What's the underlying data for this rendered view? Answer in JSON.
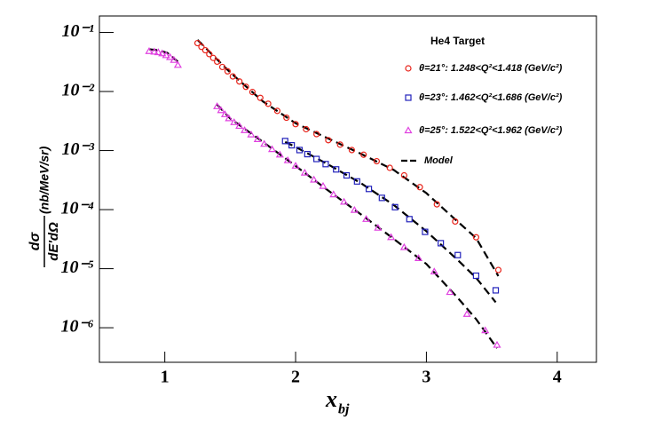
{
  "chart_data": {
    "type": "scatter",
    "legend_title": "He4 Target",
    "xlabel": "x",
    "xlabel_sub": "bj",
    "ylabel_num": "dσ",
    "ylabel_den": "dE'dΩ",
    "ylabel_unit": "(nb/MeV/sr)",
    "xlim": [
      0.5,
      4.3
    ],
    "ylim": [
      2.6e-07,
      0.19
    ],
    "ylog": true,
    "xticks": [
      1,
      2,
      3,
      4
    ],
    "yticks": [
      {
        "value": 1e-06,
        "label": "10⁻⁶"
      },
      {
        "value": 1e-05,
        "label": "10⁻⁵"
      },
      {
        "value": 0.0001,
        "label": "10⁻⁴"
      },
      {
        "value": 0.001,
        "label": "10⁻³"
      },
      {
        "value": 0.01,
        "label": "10⁻²"
      },
      {
        "value": 0.1,
        "label": "10⁻¹"
      }
    ],
    "series": [
      {
        "name": "θ=21°: 1.248<Q²<1.418 (GeV/c²)",
        "color": "#e8231a",
        "marker": "circle",
        "x": [
          1.25,
          1.28,
          1.31,
          1.34,
          1.37,
          1.4,
          1.44,
          1.48,
          1.52,
          1.57,
          1.62,
          1.67,
          1.73,
          1.79,
          1.86,
          1.93,
          2.0,
          2.08,
          2.16,
          2.25,
          2.34,
          2.43,
          2.52,
          2.62,
          2.72,
          2.83,
          2.95,
          3.08,
          3.22,
          3.38,
          3.55
        ],
        "values": [
          0.066,
          0.057,
          0.05,
          0.043,
          0.037,
          0.032,
          0.026,
          0.022,
          0.018,
          0.0148,
          0.012,
          0.0098,
          0.0078,
          0.0062,
          0.0047,
          0.0036,
          0.0028,
          0.0023,
          0.0019,
          0.0015,
          0.00126,
          0.00102,
          0.00085,
          0.00066,
          0.00051,
          0.00038,
          0.00024,
          0.000123,
          6.3e-05,
          3.4e-05,
          9.5e-06
        ]
      },
      {
        "name": "θ=23°: 1.462<Q²<1.686 (GeV/c²)",
        "color": "#2222bb",
        "marker": "square",
        "x": [
          1.92,
          1.97,
          2.03,
          2.09,
          2.16,
          2.23,
          2.31,
          2.39,
          2.47,
          2.56,
          2.66,
          2.76,
          2.87,
          2.99,
          3.11,
          3.24,
          3.38,
          3.53
        ],
        "values": [
          0.00145,
          0.00123,
          0.00102,
          0.00087,
          0.00072,
          0.00059,
          0.00048,
          0.00038,
          0.0003,
          0.000224,
          0.000158,
          0.00011,
          6.9e-05,
          4.2e-05,
          2.7e-05,
          1.7e-05,
          7.6e-06,
          4.3e-06
        ]
      },
      {
        "name": "θ=25°: 1.522<Q²<1.962 (GeV/c²)",
        "color": "#e040e0",
        "marker": "triangle",
        "x": [
          0.88,
          0.92,
          0.95,
          0.98,
          1.01,
          1.04,
          1.07,
          1.1,
          1.4,
          1.43,
          1.46,
          1.49,
          1.53,
          1.57,
          1.61,
          1.66,
          1.71,
          1.76,
          1.82,
          1.88,
          1.94,
          2.0,
          2.07,
          2.14,
          2.21,
          2.29,
          2.37,
          2.45,
          2.54,
          2.63,
          2.73,
          2.83,
          2.94,
          3.06,
          3.18,
          3.31,
          3.45,
          3.54
        ],
        "values": [
          0.048,
          0.047,
          0.046,
          0.044,
          0.041,
          0.038,
          0.034,
          0.028,
          0.0056,
          0.0048,
          0.0041,
          0.0035,
          0.003,
          0.0026,
          0.0022,
          0.00186,
          0.00155,
          0.00129,
          0.00105,
          0.00085,
          0.00068,
          0.00055,
          0.00042,
          0.00032,
          0.00025,
          0.00018,
          0.000135,
          9.8e-05,
          6.9e-05,
          4.9e-05,
          3.4e-05,
          2.3e-05,
          1.5e-05,
          8.9e-06,
          4e-06,
          1.7e-06,
          9e-07,
          5.1e-07
        ]
      }
    ],
    "model": {
      "name": "Model",
      "color": "#000000",
      "curves": [
        {
          "x": [
            0.88,
            0.95,
            1.02,
            1.1
          ],
          "values": [
            0.052,
            0.05,
            0.045,
            0.032
          ]
        },
        {
          "x": [
            1.25,
            1.5,
            1.75,
            2.0,
            2.25,
            2.5,
            2.75,
            3.0,
            3.2,
            3.38,
            3.55
          ],
          "values": [
            0.075,
            0.021,
            0.0068,
            0.0029,
            0.0016,
            0.00088,
            0.00047,
            0.00019,
            7.5e-05,
            3.3e-05,
            7.5e-06
          ]
        },
        {
          "x": [
            1.92,
            2.0,
            2.25,
            2.5,
            2.75,
            3.0,
            3.24,
            3.38,
            3.53
          ],
          "values": [
            0.0014,
            0.00115,
            0.00058,
            0.00028,
            0.00012,
            4.3e-05,
            1.4e-05,
            7e-06,
            2.7e-06
          ]
        },
        {
          "x": [
            1.4,
            1.5,
            1.75,
            2.0,
            2.25,
            2.5,
            2.75,
            3.0,
            3.24,
            3.38,
            3.54
          ],
          "values": [
            0.006,
            0.0035,
            0.0014,
            0.00055,
            0.00021,
            8.3e-05,
            3.2e-05,
            1.2e-05,
            3.2e-06,
            1.4e-06,
            4.5e-07
          ]
        }
      ]
    }
  }
}
